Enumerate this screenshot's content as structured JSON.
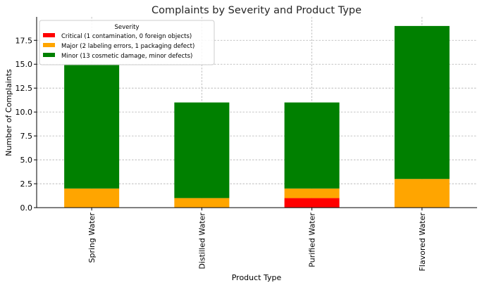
{
  "chart_data": {
    "type": "bar",
    "stacked": true,
    "title": "Complaints by Severity and Product Type",
    "xlabel": "Product Type",
    "ylabel": "Number of Complaints",
    "categories": [
      "Spring Water",
      "Distilled Water",
      "Purified Water",
      "Flavored Water"
    ],
    "series": [
      {
        "name": "Critical (1 contamination, 0 foreign objects)",
        "color": "#ff0000",
        "values": [
          0,
          0,
          1,
          0
        ]
      },
      {
        "name": "Major (2 labeling errors, 1 packaging defect)",
        "color": "#ffa500",
        "values": [
          2,
          1,
          1,
          3
        ]
      },
      {
        "name": "Minor (13 cosmetic damage, minor defects)",
        "color": "#008000",
        "values": [
          13,
          10,
          9,
          16
        ]
      }
    ],
    "ylim": [
      0,
      19.95
    ],
    "yticks": [
      "0.0",
      "2.5",
      "5.0",
      "7.5",
      "10.0",
      "12.5",
      "15.0",
      "17.5"
    ],
    "grid": true,
    "legend": {
      "title": "Severity",
      "placement": "upper-left"
    }
  }
}
